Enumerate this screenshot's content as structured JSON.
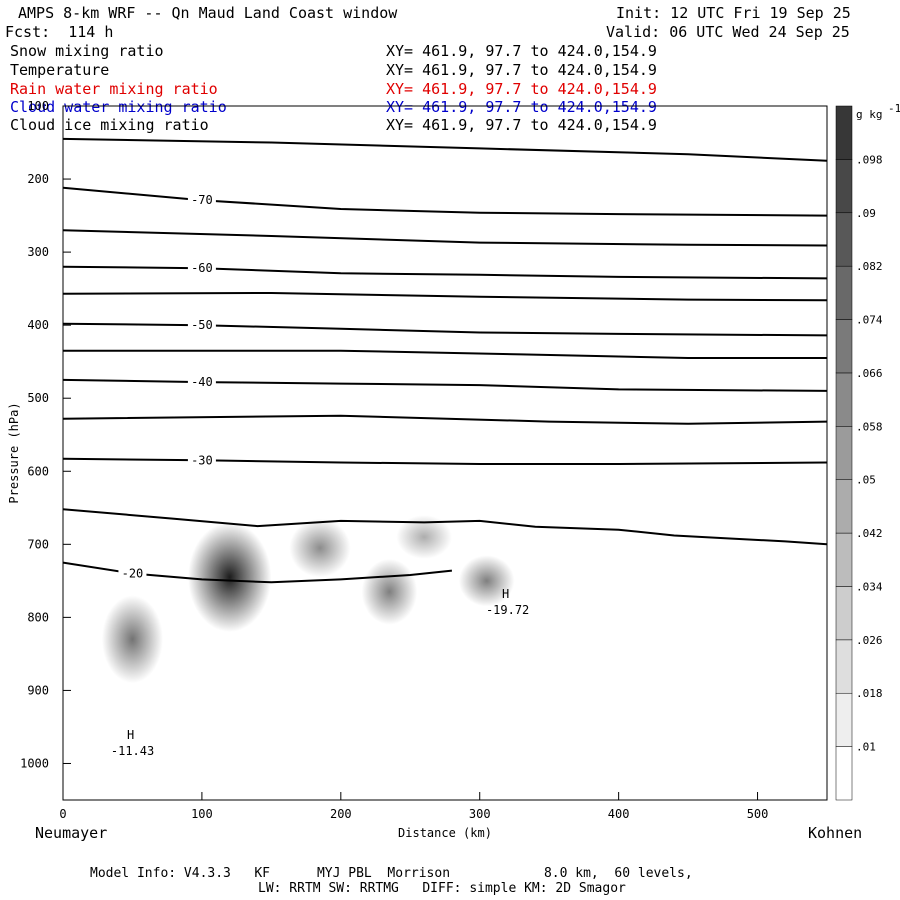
{
  "header": {
    "title": "AMPS 8-km WRF -- Qn Maud Land Coast window",
    "init": "Init: 12 UTC Fri 19 Sep 25",
    "fcst": "Fcst:  114 h",
    "valid": "Valid: 06 UTC Wed 24 Sep 25"
  },
  "fields": [
    {
      "name": "Snow mixing ratio",
      "xy": "XY= 461.9, 97.7 to 424.0,154.9",
      "color": "#000000"
    },
    {
      "name": "Temperature",
      "xy": "XY= 461.9, 97.7 to 424.0,154.9",
      "color": "#000000"
    },
    {
      "name": "Rain water mixing ratio",
      "xy": "XY= 461.9, 97.7 to 424.0,154.9",
      "color": "#e00000"
    },
    {
      "name": "Cloud water mixing ratio",
      "xy": "XY= 461.9, 97.7 to 424.0,154.9",
      "color": "#0000cc"
    },
    {
      "name": "Cloud ice mixing ratio",
      "xy": "XY= 461.9, 97.7 to 424.0,154.9",
      "color": "#000000"
    }
  ],
  "footer": {
    "line1": "Model Info: V4.3.3   KF      MYJ PBL  Morrison            8.0 km,  60 levels,",
    "line2": "LW: RRTM SW: RRTMG   DIFF: simple KM: 2D Smagor"
  },
  "chart_data": {
    "type": "contour",
    "xlabel": "Distance (km)",
    "ylabel": "Pressure (hPa)",
    "xlim": [
      0,
      550
    ],
    "ylim": [
      1050,
      100
    ],
    "x_ticks": [
      0,
      100,
      200,
      300,
      400,
      500
    ],
    "y_ticks": [
      100,
      200,
      300,
      400,
      500,
      600,
      700,
      800,
      900,
      1000
    ],
    "x_end_labels": {
      "left": "Neumayer",
      "right": "Kohnen"
    },
    "colorbar": {
      "unit": "g kg",
      "unit_superscript": "-1",
      "levels": [
        0.01,
        0.018,
        0.026,
        0.034,
        0.042,
        0.05,
        0.058,
        0.066,
        0.074,
        0.082,
        0.09,
        0.098
      ],
      "level_labels": [
        ".01",
        ".018",
        ".026",
        ".034",
        ".042",
        ".05",
        ".058",
        ".066",
        ".074",
        ".082",
        ".09",
        ".098"
      ]
    },
    "temperature_isotherms": [
      {
        "label": "-70",
        "points": [
          [
            0,
            212
          ],
          [
            100,
            229
          ],
          [
            200,
            241
          ],
          [
            300,
            246
          ],
          [
            400,
            248
          ],
          [
            550,
            250
          ]
        ]
      },
      {
        "label": "-60",
        "points": [
          [
            0,
            320
          ],
          [
            100,
            322
          ],
          [
            200,
            329
          ],
          [
            300,
            331
          ],
          [
            400,
            334
          ],
          [
            550,
            336
          ]
        ]
      },
      {
        "label": "-50",
        "points": [
          [
            0,
            398
          ],
          [
            100,
            400
          ],
          [
            200,
            405
          ],
          [
            300,
            410
          ],
          [
            400,
            412
          ],
          [
            550,
            414
          ]
        ]
      },
      {
        "label": "-40",
        "points": [
          [
            0,
            475
          ],
          [
            100,
            478
          ],
          [
            200,
            480
          ],
          [
            300,
            482
          ],
          [
            400,
            488
          ],
          [
            550,
            490
          ]
        ]
      },
      {
        "label": "-30",
        "points": [
          [
            0,
            583
          ],
          [
            100,
            585
          ],
          [
            200,
            588
          ],
          [
            300,
            590
          ],
          [
            400,
            590
          ],
          [
            550,
            588
          ]
        ]
      },
      {
        "label": "-20",
        "points": [
          [
            0,
            725
          ],
          [
            50,
            740
          ],
          [
            100,
            748
          ],
          [
            150,
            752
          ],
          [
            200,
            748
          ],
          [
            250,
            742
          ],
          [
            280,
            736
          ]
        ]
      }
    ],
    "extra_lines": [
      {
        "points": [
          [
            0,
            145
          ],
          [
            150,
            150
          ],
          [
            300,
            158
          ],
          [
            450,
            166
          ],
          [
            550,
            175
          ]
        ]
      },
      {
        "points": [
          [
            0,
            270
          ],
          [
            150,
            278
          ],
          [
            300,
            287
          ],
          [
            450,
            290
          ],
          [
            550,
            291
          ]
        ]
      },
      {
        "points": [
          [
            0,
            357
          ],
          [
            150,
            356
          ],
          [
            300,
            361
          ],
          [
            450,
            365
          ],
          [
            550,
            366
          ]
        ]
      },
      {
        "points": [
          [
            0,
            435
          ],
          [
            200,
            435
          ],
          [
            330,
            440
          ],
          [
            450,
            445
          ],
          [
            550,
            445
          ]
        ]
      },
      {
        "points": [
          [
            0,
            528
          ],
          [
            200,
            524
          ],
          [
            350,
            532
          ],
          [
            450,
            535
          ],
          [
            550,
            532
          ]
        ]
      },
      {
        "points": [
          [
            0,
            652
          ],
          [
            80,
            665
          ],
          [
            140,
            675
          ],
          [
            200,
            668
          ],
          [
            260,
            670
          ],
          [
            300,
            668
          ],
          [
            340,
            676
          ],
          [
            400,
            680
          ],
          [
            440,
            688
          ],
          [
            480,
            692
          ],
          [
            520,
            696
          ],
          [
            550,
            700
          ]
        ]
      }
    ],
    "maxima": [
      {
        "label": "H",
        "value": "-11.43",
        "x": 40,
        "p": 975
      },
      {
        "label": "H",
        "value": "-19.72",
        "x": 310,
        "p": 782
      }
    ],
    "snow_cells": [
      {
        "x": 120,
        "p": 745,
        "rx": 30,
        "rp": 75,
        "peak": 0.098
      },
      {
        "x": 50,
        "p": 830,
        "rx": 22,
        "rp": 60,
        "peak": 0.06
      },
      {
        "x": 185,
        "p": 705,
        "rx": 22,
        "rp": 40,
        "peak": 0.05
      },
      {
        "x": 235,
        "p": 765,
        "rx": 20,
        "rp": 45,
        "peak": 0.055
      },
      {
        "x": 305,
        "p": 750,
        "rx": 20,
        "rp": 35,
        "peak": 0.055
      },
      {
        "x": 260,
        "p": 690,
        "rx": 20,
        "rp": 30,
        "peak": 0.035
      }
    ]
  }
}
